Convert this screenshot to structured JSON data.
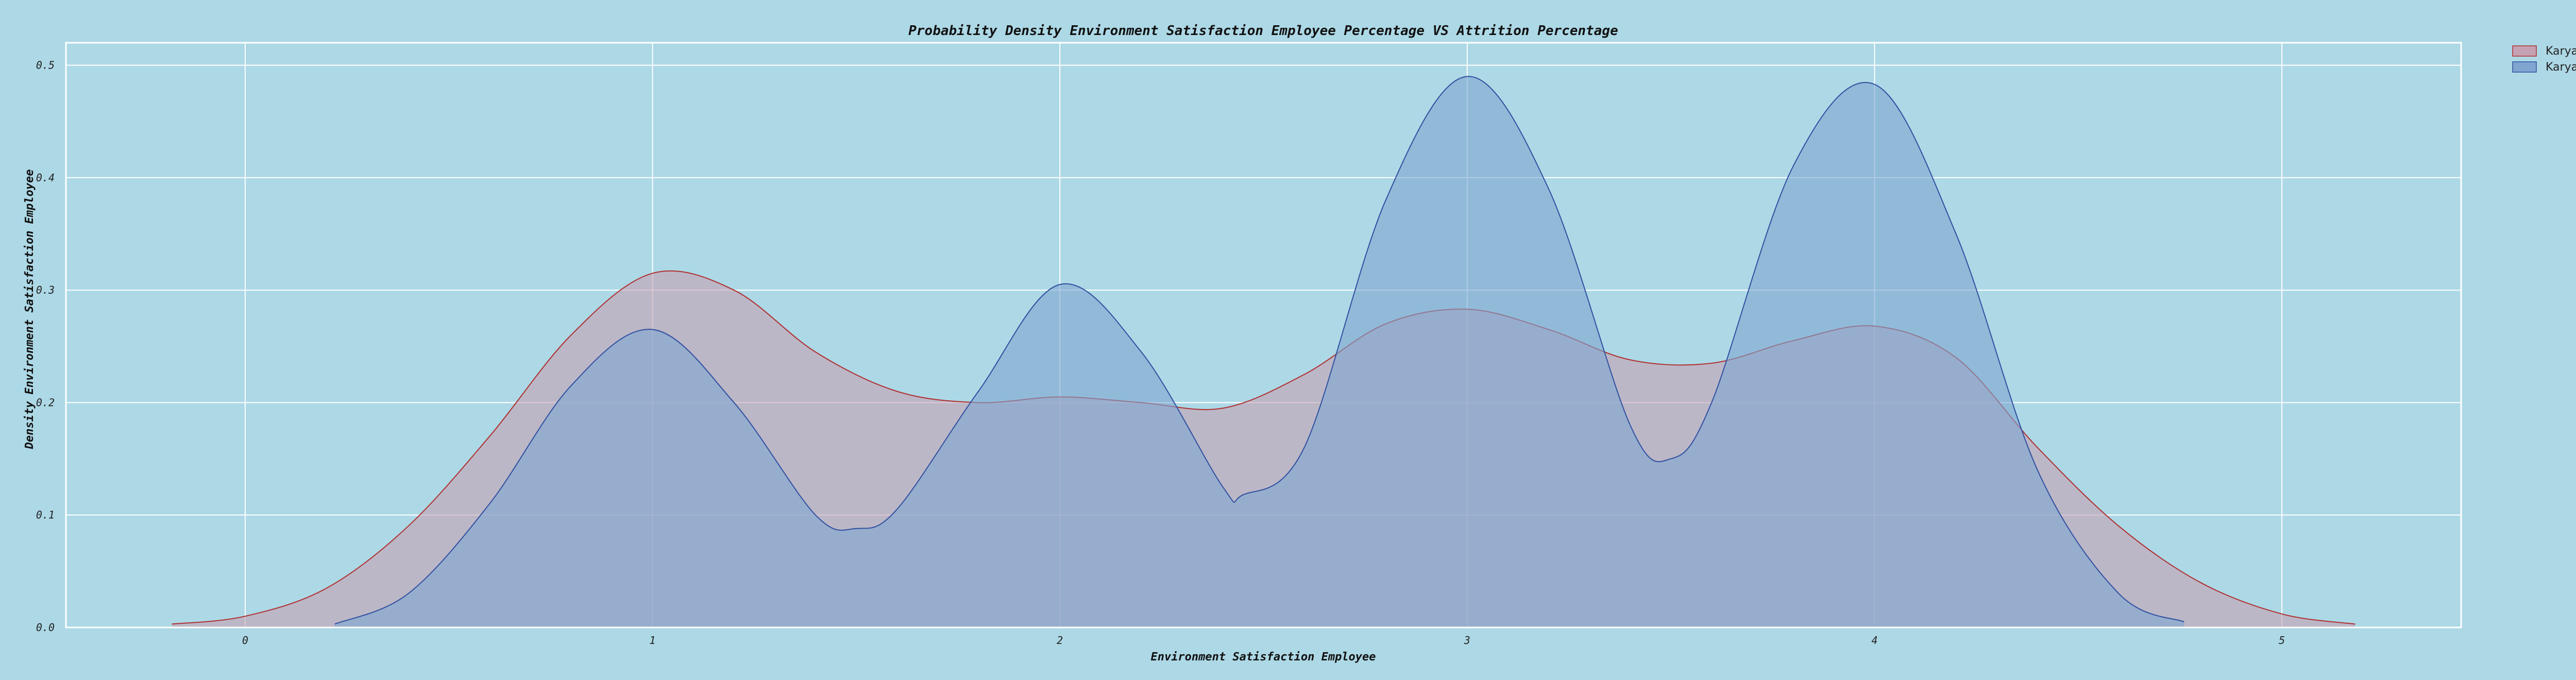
{
  "chart_data": {
    "type": "area",
    "title": "Probability Density Environment Satisfaction Employee Percentage VS Attrition Percentage",
    "xlabel": "Environment Satisfaction Employee",
    "ylabel": "Density Environment Satisfaction Employee",
    "xlim": [
      -0.44,
      5.44
    ],
    "ylim": [
      0,
      0.52
    ],
    "xticks": [
      0,
      1,
      2,
      3,
      4,
      5
    ],
    "xtick_labels": [
      "0",
      "1",
      "2",
      "3",
      "4",
      "5"
    ],
    "yticks": [
      0.0,
      0.1,
      0.2,
      0.3,
      0.4,
      0.5
    ],
    "ytick_labels": [
      "0.0",
      "0.1",
      "0.2",
      "0.3",
      "0.4",
      "0.5"
    ],
    "grid": true,
    "legend_position": "outside-top-right",
    "series": [
      {
        "name": "Karyawan Resign",
        "fill": "#c4a2b3",
        "stroke": "#b03030",
        "x": [
          -0.18,
          0,
          0.2,
          0.4,
          0.6,
          0.8,
          1.0,
          1.2,
          1.4,
          1.6,
          1.8,
          2.0,
          2.2,
          2.4,
          2.6,
          2.8,
          3.0,
          3.2,
          3.4,
          3.6,
          3.8,
          4.0,
          4.2,
          4.4,
          4.6,
          4.8,
          5.0,
          5.18
        ],
        "y": [
          0.003,
          0.01,
          0.035,
          0.09,
          0.17,
          0.26,
          0.315,
          0.3,
          0.245,
          0.21,
          0.2,
          0.205,
          0.2,
          0.195,
          0.225,
          0.27,
          0.283,
          0.265,
          0.238,
          0.235,
          0.255,
          0.268,
          0.24,
          0.16,
          0.09,
          0.04,
          0.012,
          0.003
        ]
      },
      {
        "name": "Karyawan Tidak Resign",
        "fill": "#7fa6d0",
        "stroke": "#3050a0",
        "x": [
          0.22,
          0.4,
          0.6,
          0.8,
          1.0,
          1.2,
          1.4,
          1.5,
          1.6,
          1.8,
          2.0,
          2.2,
          2.4,
          2.45,
          2.6,
          2.8,
          3.0,
          3.2,
          3.4,
          3.5,
          3.6,
          3.8,
          4.0,
          4.2,
          4.4,
          4.6,
          4.76
        ],
        "y": [
          0.003,
          0.03,
          0.11,
          0.215,
          0.265,
          0.2,
          0.1,
          0.088,
          0.105,
          0.21,
          0.305,
          0.245,
          0.125,
          0.118,
          0.16,
          0.38,
          0.49,
          0.39,
          0.18,
          0.15,
          0.2,
          0.41,
          0.483,
          0.35,
          0.14,
          0.03,
          0.005
        ]
      }
    ]
  }
}
